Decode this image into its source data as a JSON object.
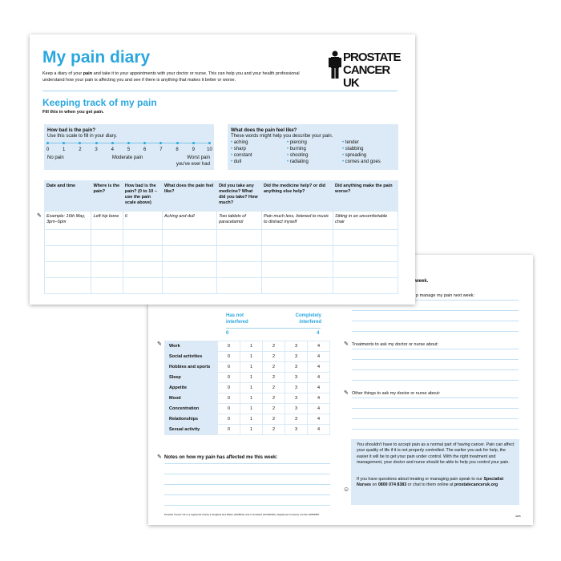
{
  "front": {
    "title": "My pain diary",
    "intro_before": "Keep a diary of your ",
    "intro_bold": "pain",
    "intro_after": " and take it to your appointments with your doctor or nurse. This can help you and your health professional understand how your pain is affecting you and see if there is anything that makes it better or worse.",
    "logo": {
      "line1": "PROSTATE",
      "line2": "CANCER UK"
    },
    "section_title": "Keeping track of my pain",
    "fill_note": "Fill this in when you get pain.",
    "scale": {
      "title": "How bad is the pain?",
      "subtitle": "Use this scale to fill in your diary.",
      "ticks": [
        "0",
        "1",
        "2",
        "3",
        "4",
        "5",
        "6",
        "7",
        "8",
        "9",
        "10"
      ],
      "low": "No pain",
      "mid": "Moderate pain",
      "high": "Worst pain you've ever had"
    },
    "words": {
      "title": "What does the pain feel like?",
      "subtitle": "These words might help you describe your pain.",
      "col1": [
        "aching",
        "sharp",
        "constant",
        "dull"
      ],
      "col2": [
        "piercing",
        "burning",
        "shooting",
        "radiating"
      ],
      "col3": [
        "tender",
        "stabbing",
        "spreading",
        "comes and goes"
      ]
    },
    "table": {
      "headers": [
        "Date and time",
        "Where is the pain?",
        "How bad is the pain? (0 to 10 – use the pain scale above)",
        "What does the pain feel like?",
        "Did you take any medicine? What did you take? How much?",
        "Did the medicine help? or did anything else help?",
        "Did anything make the pain worse?"
      ],
      "example": [
        "Example: 16th May, 3pm–5pm",
        "Left hip bone",
        "6",
        "Aching and dull",
        "Two tablets of paracetamol",
        "Pain much less, listened to music to distract myself",
        "Sitting in an uncomfortable chair"
      ]
    }
  },
  "back": {
    "scale_low": "Has not interfered",
    "scale_high": "Completely interfered",
    "scale_min": "0",
    "scale_max": "4",
    "activities": [
      "Work",
      "Social activities",
      "Hobbies and sports",
      "Sleep",
      "Appetite",
      "Mood",
      "Concentration",
      "Relationships",
      "Sexual activity"
    ],
    "options": [
      "0",
      "1",
      "2",
      "3",
      "4"
    ],
    "notes_label": "Notes on how my pain has affected me this week:",
    "footer": "Prostate Cancer UK is a registered charity in England and Wales (1005541) and in Scotland (SC039332). Registered company number 02653887",
    "right_heading_fragment": "e week.",
    "right_label1_fragment": "p manage my pain next week:",
    "label_treatments": "Treatments to ask my doctor or nurse about:",
    "label_other": "Other things to ask my doctor or nurse about:",
    "info_para1": "You shouldn't have to accept pain as a normal part of having cancer. Pain can affect your quality of life if it is not properly controlled. The earlier you ask for help, the easier it will be to get your pain under control. With the right treatment and management, your doctor and nurse should be able to help you control your pain.",
    "info_before": "If you have questions about treating or managing pain speak to our ",
    "info_bold1": "Specialist Nurses",
    "info_mid": " on ",
    "info_phone": "0800 074 8383",
    "info_after": " or chat to them online at ",
    "info_url": "prostatecanceruk.org",
    "page_code": "4105"
  },
  "colors": {
    "accent": "#2aa7df",
    "panel": "#dbeaf6"
  }
}
